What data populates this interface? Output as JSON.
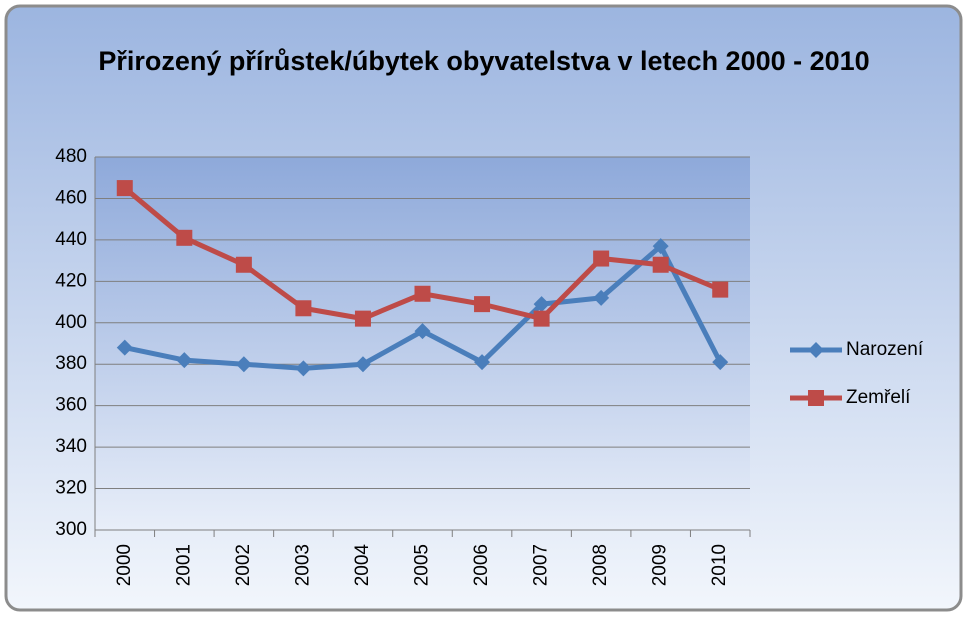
{
  "chart_data": {
    "type": "line",
    "title": "Přirozený přírůstek/úbytek obyvatelstva v letech 2000 - 2010",
    "categories": [
      "2000",
      "2001",
      "2002",
      "2003",
      "2004",
      "2005",
      "2006",
      "2007",
      "2008",
      "2009",
      "2010"
    ],
    "series": [
      {
        "name": "Narození",
        "color": "#4a7ebb",
        "marker": "diamond",
        "values": [
          388,
          382,
          380,
          378,
          380,
          396,
          381,
          409,
          412,
          437,
          381
        ]
      },
      {
        "name": "Zemřelí",
        "color": "#be4b48",
        "marker": "square",
        "values": [
          465,
          441,
          428,
          407,
          402,
          414,
          409,
          402,
          431,
          428,
          416
        ]
      }
    ],
    "ylim": [
      300,
      480
    ],
    "yticks": [
      300,
      320,
      340,
      360,
      380,
      400,
      420,
      440,
      460,
      480
    ],
    "grid": true,
    "legend": "right"
  }
}
